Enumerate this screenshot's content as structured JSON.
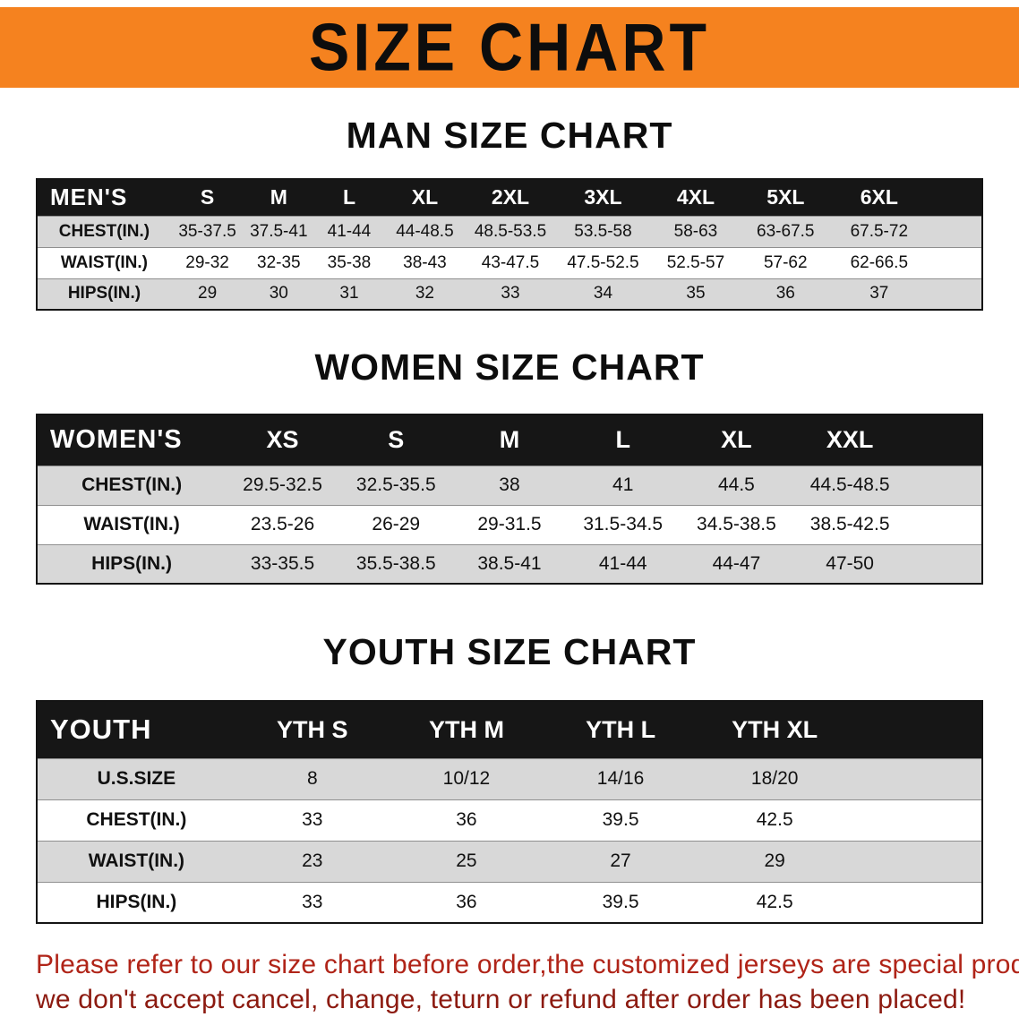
{
  "banner": {
    "title": "SIZE CHART"
  },
  "sections": [
    {
      "heading": "MAN SIZE CHART",
      "table": {
        "label": "MEN'S",
        "columns": [
          "S",
          "M",
          "L",
          "XL",
          "2XL",
          "3XL",
          "4XL",
          "5XL",
          "6XL"
        ],
        "rows": [
          {
            "label": "CHEST(IN.)",
            "values": [
              "35-37.5",
              "37.5-41",
              "41-44",
              "44-48.5",
              "48.5-53.5",
              "53.5-58",
              "58-63",
              "63-67.5",
              "67.5-72"
            ]
          },
          {
            "label": "WAIST(IN.)",
            "values": [
              "29-32",
              "32-35",
              "35-38",
              "38-43",
              "43-47.5",
              "47.5-52.5",
              "52.5-57",
              "57-62",
              "62-66.5"
            ]
          },
          {
            "label": "HIPS(IN.)",
            "values": [
              "29",
              "30",
              "31",
              "32",
              "33",
              "34",
              "35",
              "36",
              "37"
            ]
          }
        ]
      }
    },
    {
      "heading": "WOMEN SIZE CHART",
      "table": {
        "label": "WOMEN'S",
        "columns": [
          "XS",
          "S",
          "M",
          "L",
          "XL",
          "XXL"
        ],
        "rows": [
          {
            "label": "CHEST(IN.)",
            "values": [
              "29.5-32.5",
              "32.5-35.5",
              "38",
              "41",
              "44.5",
              "44.5-48.5"
            ]
          },
          {
            "label": "WAIST(IN.)",
            "values": [
              "23.5-26",
              "26-29",
              "29-31.5",
              "31.5-34.5",
              "34.5-38.5",
              "38.5-42.5"
            ]
          },
          {
            "label": "HIPS(IN.)",
            "values": [
              "33-35.5",
              "35.5-38.5",
              "38.5-41",
              "41-44",
              "44-47",
              "47-50"
            ]
          }
        ]
      }
    },
    {
      "heading": "YOUTH SIZE CHART",
      "table": {
        "label": "YOUTH",
        "columns": [
          "YTH S",
          "YTH M",
          "YTH L",
          "YTH XL"
        ],
        "rows": [
          {
            "label": "U.S.SIZE",
            "values": [
              "8",
              "10/12",
              "14/16",
              "18/20"
            ]
          },
          {
            "label": "CHEST(IN.)",
            "values": [
              "33",
              "36",
              "39.5",
              "42.5"
            ]
          },
          {
            "label": "WAIST(IN.)",
            "values": [
              "23",
              "25",
              "27",
              "29"
            ]
          },
          {
            "label": "HIPS(IN.)",
            "values": [
              "33",
              "36",
              "39.5",
              "42.5"
            ]
          }
        ]
      }
    }
  ],
  "disclaimer": {
    "line1": "Please refer to our size chart before order,the customized jerseys are special products,",
    "line2": "we don't accept cancel, change, teturn or refund after order has been placed!"
  },
  "colors": {
    "banner_bg": "#f5821f",
    "header_bg": "#161616",
    "row_alt": "#d8d8d8",
    "disclaimer_line1": "#b02418",
    "disclaimer_line2": "#8c1a10"
  }
}
